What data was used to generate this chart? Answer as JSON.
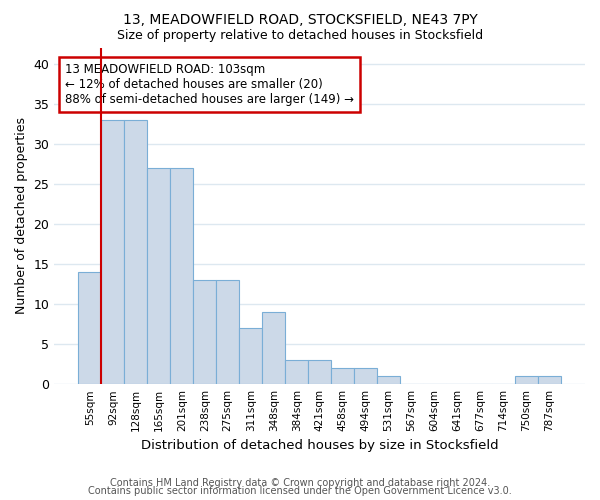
{
  "title1": "13, MEADOWFIELD ROAD, STOCKSFIELD, NE43 7PY",
  "title2": "Size of property relative to detached houses in Stocksfield",
  "xlabel": "Distribution of detached houses by size in Stocksfield",
  "ylabel": "Number of detached properties",
  "categories": [
    "55sqm",
    "92sqm",
    "128sqm",
    "165sqm",
    "201sqm",
    "238sqm",
    "275sqm",
    "311sqm",
    "348sqm",
    "384sqm",
    "421sqm",
    "458sqm",
    "494sqm",
    "531sqm",
    "567sqm",
    "604sqm",
    "641sqm",
    "677sqm",
    "714sqm",
    "750sqm",
    "787sqm"
  ],
  "values": [
    14,
    33,
    33,
    27,
    27,
    13,
    13,
    7,
    9,
    3,
    3,
    2,
    2,
    1,
    0,
    0,
    0,
    0,
    0,
    1,
    1
  ],
  "bar_color": "#ccd9e8",
  "bar_edge_color": "#7aaed6",
  "highlight_color": "#cc0000",
  "annotation_text": "13 MEADOWFIELD ROAD: 103sqm\n← 12% of detached houses are smaller (20)\n88% of semi-detached houses are larger (149) →",
  "annotation_box_color": "white",
  "annotation_box_edge_color": "#cc0000",
  "footer1": "Contains HM Land Registry data © Crown copyright and database right 2024.",
  "footer2": "Contains public sector information licensed under the Open Government Licence v3.0.",
  "ylim": [
    0,
    42
  ],
  "yticks": [
    0,
    5,
    10,
    15,
    20,
    25,
    30,
    35,
    40
  ],
  "background_color": "#ffffff",
  "grid_color": "#dde8f0"
}
